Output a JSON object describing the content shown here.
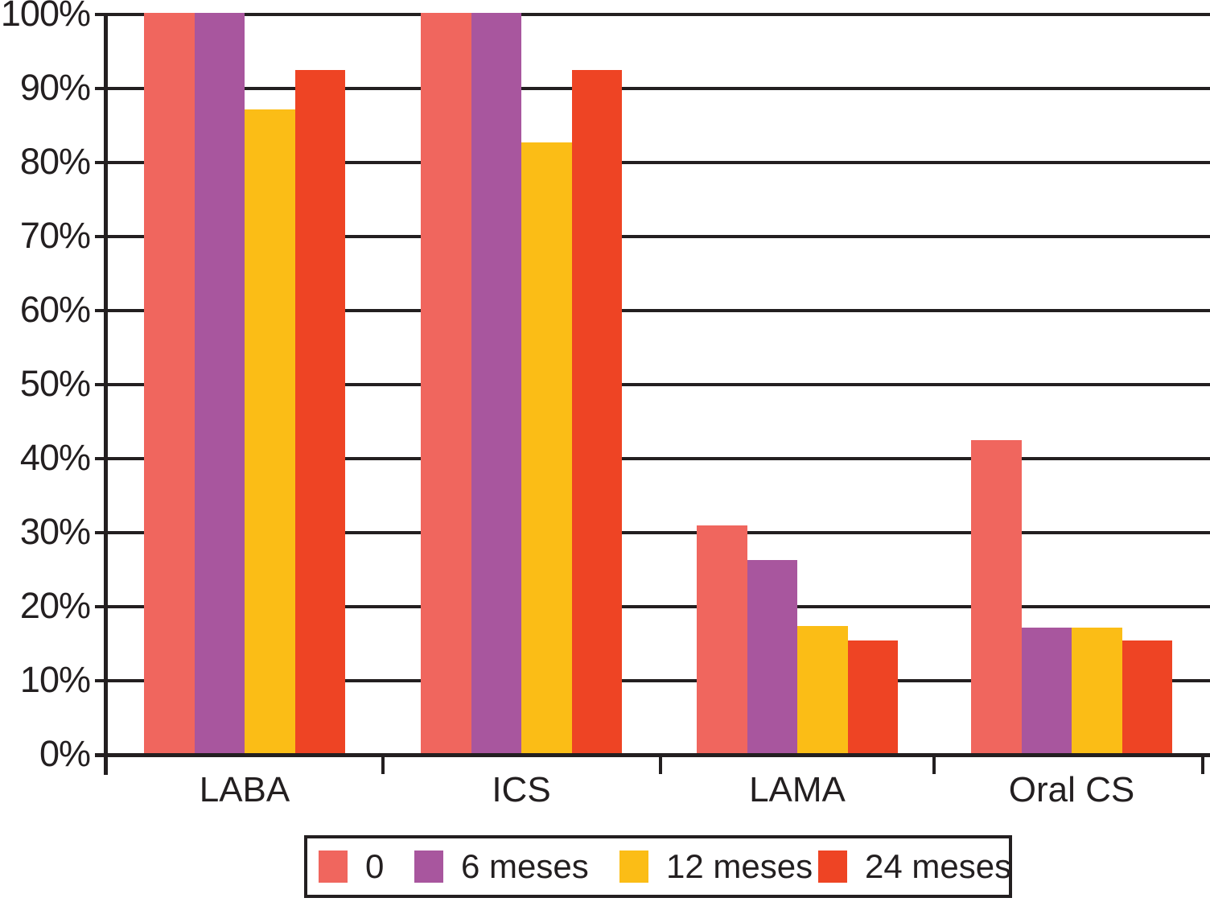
{
  "figure": {
    "background_color": "#ffffff",
    "axis_color": "#231F20",
    "text_color": "#231F20"
  },
  "chart_data": {
    "type": "bar",
    "title": "",
    "xlabel": "",
    "ylabel": "",
    "categories": [
      "LABA",
      "ICS",
      "LAMA",
      "Oral CS"
    ],
    "series": [
      {
        "name": "0",
        "color": "#F0665E",
        "values": [
          100,
          100,
          30.8,
          42.3
        ]
      },
      {
        "name": "6 meses",
        "color": "#A8569E",
        "values": [
          100,
          100,
          26.1,
          17.0
        ]
      },
      {
        "name": "12 meses",
        "color": "#FBBD16",
        "values": [
          87.0,
          82.5,
          17.2,
          17.0
        ]
      },
      {
        "name": "24 meses",
        "color": "#EE4424",
        "values": [
          92.3,
          92.3,
          15.2,
          15.2
        ]
      }
    ],
    "ylim": [
      0,
      100
    ],
    "y_tick_labels": [
      "0%",
      "10%",
      "20%",
      "30%",
      "40%",
      "50%",
      "60%",
      "70%",
      "80%",
      "90%",
      "100%"
    ],
    "grid": true,
    "legend_position": "bottom"
  }
}
